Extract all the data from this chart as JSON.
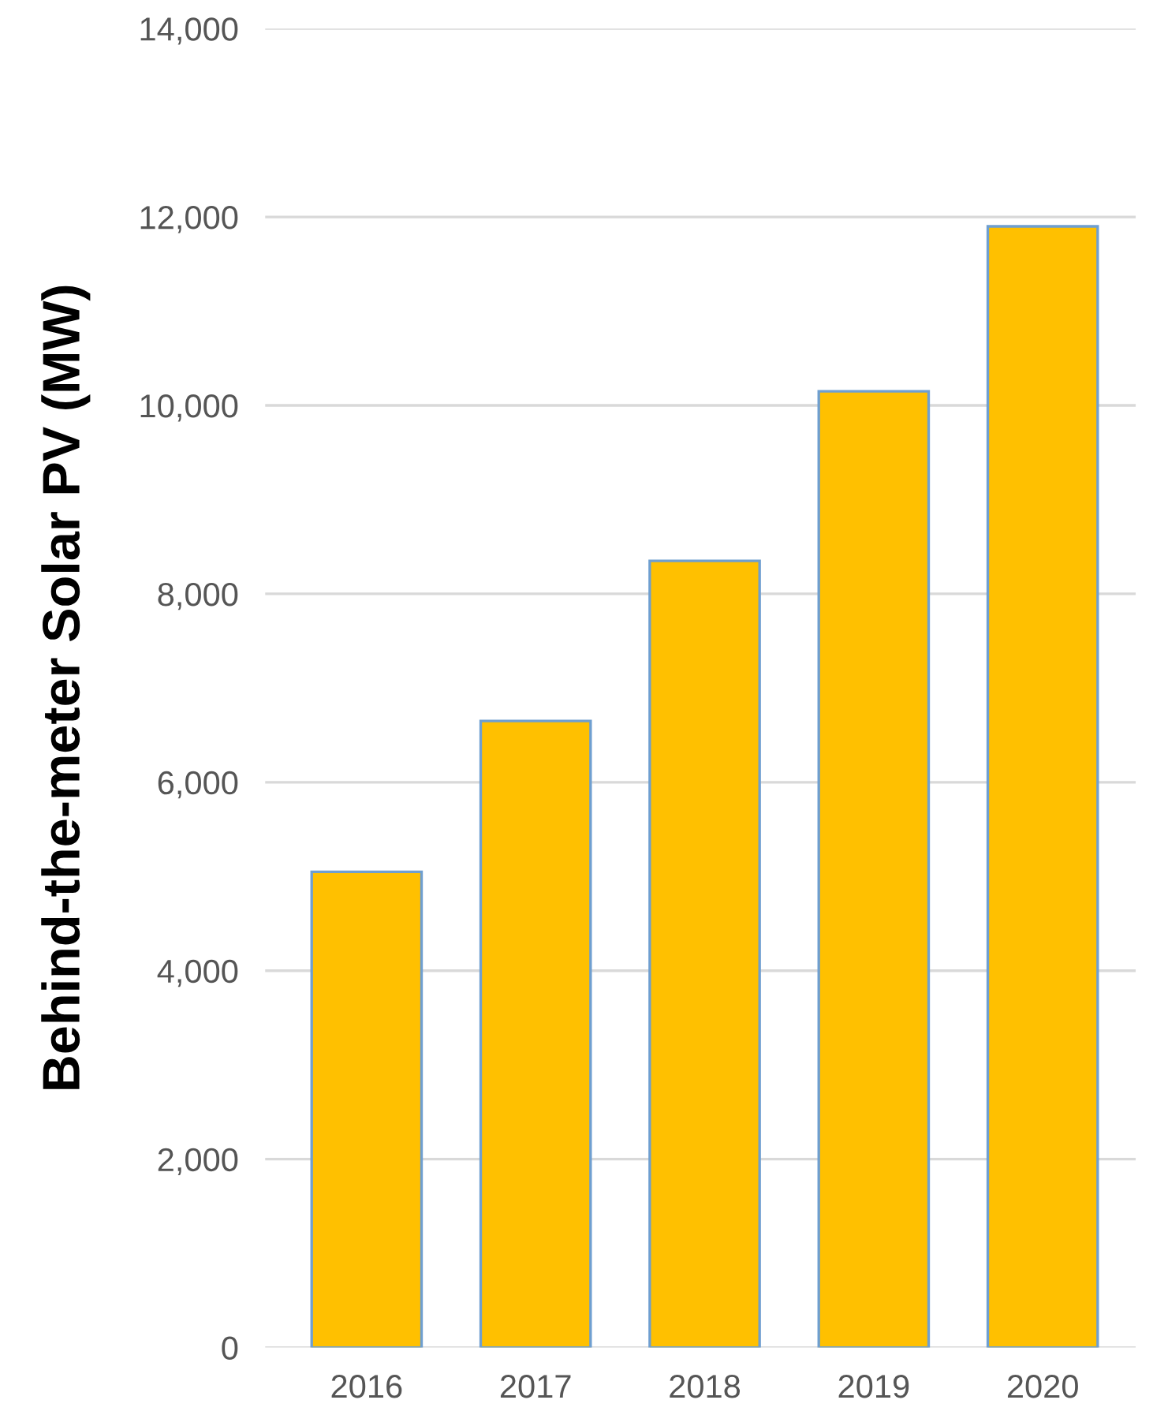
{
  "chart_data": {
    "type": "bar",
    "ylabel": "Behind-the-meter Solar PV (MW)",
    "categories": [
      "2016",
      "2017",
      "2018",
      "2019",
      "2020"
    ],
    "values": [
      5050,
      6650,
      8350,
      10150,
      11900
    ],
    "color": "#ffc000",
    "ylim": [
      0,
      14000
    ],
    "yticks": [
      0,
      {
        "value": 2000,
        "label": "2,000"
      },
      {
        "value": 4000,
        "label": "4,000"
      },
      {
        "value": 6000,
        "label": "6,000"
      },
      {
        "value": 8000,
        "label": "8,000"
      },
      {
        "value": 10000,
        "label": "10,000"
      },
      {
        "value": 12000,
        "label": "12,000"
      },
      {
        "value": 14000,
        "label": "14,000"
      }
    ],
    "grid": "y",
    "legend": false
  }
}
